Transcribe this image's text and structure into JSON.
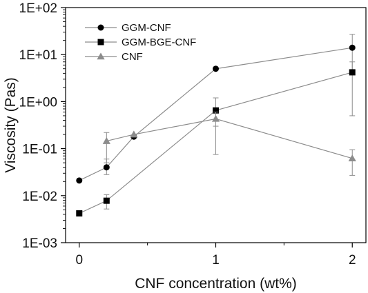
{
  "chart_data": {
    "type": "line",
    "xlabel": "CNF concentration (wt%)",
    "ylabel": "Viscosity (Pas)",
    "xlim": [
      -0.1,
      2.1
    ],
    "ylim": [
      0.001,
      100
    ],
    "yscale": "log",
    "xticks": [
      0,
      1,
      2
    ],
    "xtick_labels": [
      "0",
      "1",
      "2"
    ],
    "yticks": [
      0.001,
      0.01,
      0.1,
      1,
      10,
      100
    ],
    "ytick_labels": [
      "1E-03",
      "1E-02",
      "1E-01",
      "1E+00",
      "1E+01",
      "1E+02"
    ],
    "grid": false,
    "legend_position": "top-left",
    "series": [
      {
        "name": "GGM-CNF",
        "marker": "circle",
        "color": "#000000",
        "line_color": "#8c8c8c",
        "x": [
          0,
          0.2,
          0.4,
          1,
          2
        ],
        "y": [
          0.021,
          0.04,
          0.18,
          5.0,
          14.0
        ],
        "err_low": [
          null,
          0.028,
          null,
          null,
          4.0
        ],
        "err_high": [
          null,
          0.06,
          null,
          null,
          27.0
        ]
      },
      {
        "name": "GGM-BGE-CNF",
        "marker": "square",
        "color": "#000000",
        "line_color": "#8c8c8c",
        "x": [
          0,
          0.2,
          1,
          2
        ],
        "y": [
          0.0042,
          0.0078,
          0.65,
          4.2
        ],
        "err_low": [
          0.0037,
          0.0052,
          0.3,
          0.5
        ],
        "err_high": [
          0.0047,
          0.0105,
          1.2,
          7.0
        ]
      },
      {
        "name": "CNF",
        "marker": "triangle",
        "color": "#8c8c8c",
        "line_color": "#8c8c8c",
        "x": [
          0.2,
          0.4,
          1,
          2
        ],
        "y": [
          0.145,
          0.2,
          0.43,
          0.062
        ],
        "err_low": [
          0.05,
          null,
          0.075,
          0.027
        ],
        "err_high": [
          0.22,
          null,
          0.6,
          0.095
        ]
      }
    ]
  }
}
